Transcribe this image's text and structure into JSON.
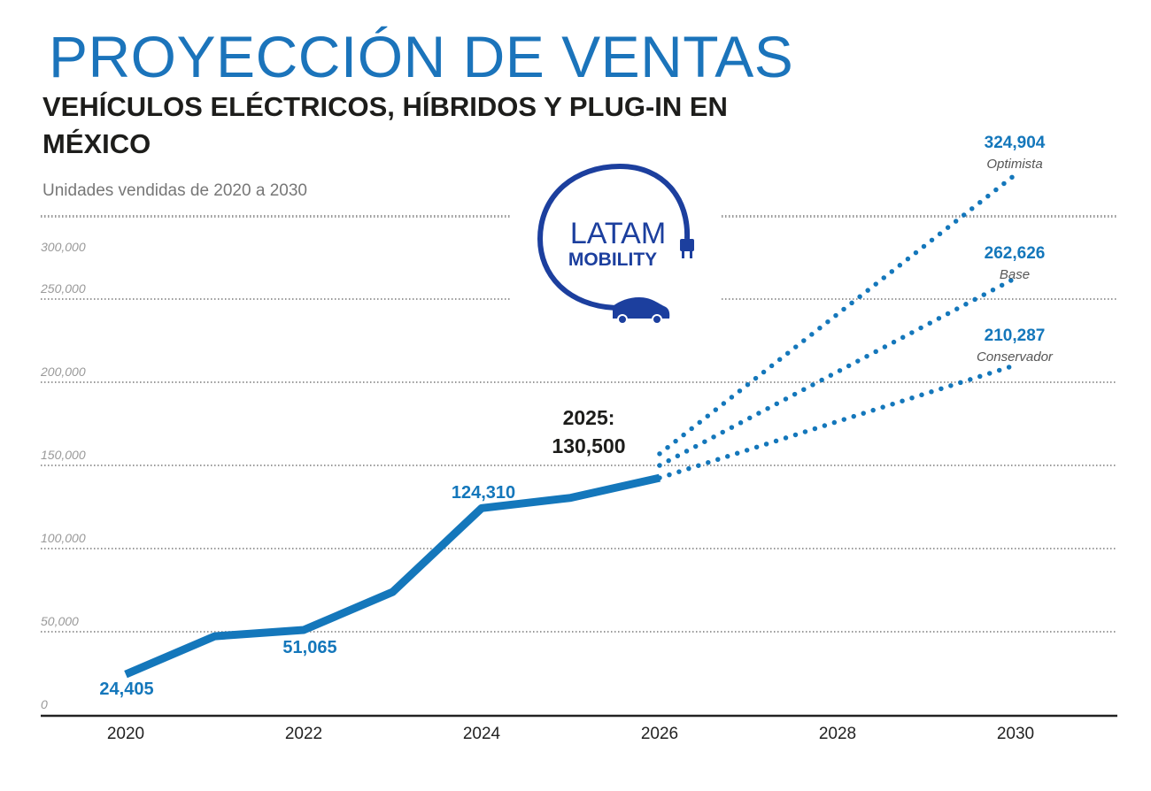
{
  "title": "PROYECCIÓN DE VENTAS",
  "subtitle": "VEHÍCULOS ELÉCTRICOS, HÍBRIDOS Y PLUG-IN EN MÉXICO",
  "units_note": "Unidades vendidas de 2020 a 2030",
  "logo": {
    "line1": "LATAM",
    "line2": "MOBILITY",
    "color": "#1c3f9e"
  },
  "chart_data": {
    "type": "line",
    "xlim": [
      2020,
      2030
    ],
    "ylim": [
      0,
      300000
    ],
    "x_ticks": [
      "2020",
      "2022",
      "2024",
      "2026",
      "2028",
      "2030"
    ],
    "y_ticks": [
      "0",
      "50,000",
      "100,000",
      "150,000",
      "200,000",
      "250,000",
      "300,000"
    ],
    "grid": "horizontal dotted",
    "colors": {
      "series": "#1477bb",
      "labels": "#1477bb",
      "annotation": "#1d1d1b"
    },
    "historic": {
      "x": [
        2020,
        2021,
        2022,
        2023,
        2024,
        2025,
        2026
      ],
      "y": [
        24405,
        47300,
        51065,
        73900,
        124310,
        130500,
        142500
      ]
    },
    "point_labels": [
      {
        "x": 2020,
        "text": "24,405"
      },
      {
        "x": 2022,
        "text": "51,065"
      },
      {
        "x": 2024,
        "text": "124,310"
      }
    ],
    "annotation": {
      "x": 2025,
      "line1": "2025:",
      "line2": "130,500"
    },
    "projections": [
      {
        "name": "Optimista",
        "value_label": "324,904",
        "x": [
          2026,
          2030
        ],
        "y": [
          157000,
          324904
        ]
      },
      {
        "name": "Base",
        "value_label": "262,626",
        "x": [
          2026,
          2030
        ],
        "y": [
          150000,
          262626
        ]
      },
      {
        "name": "Conservador",
        "value_label": "210,287",
        "x": [
          2026,
          2030
        ],
        "y": [
          142500,
          210287
        ]
      }
    ]
  }
}
